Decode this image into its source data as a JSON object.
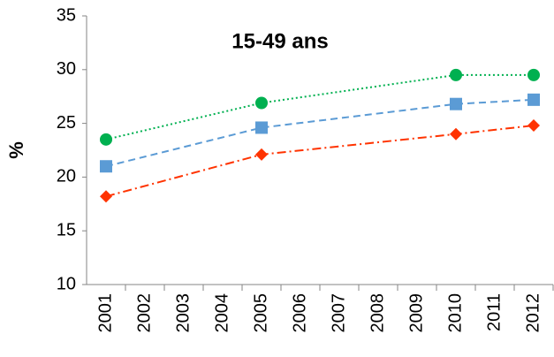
{
  "chart_data": {
    "type": "line",
    "title": "15-49 ans",
    "y_label": "%",
    "categories": [
      2001,
      2002,
      2003,
      2004,
      2005,
      2006,
      2007,
      2008,
      2009,
      2010,
      2011,
      2012
    ],
    "x": [
      2001,
      2005,
      2010,
      2012
    ],
    "series": [
      {
        "color": "#00b050",
        "marker": "circle",
        "dash": "dotted",
        "values": [
          23.5,
          26.9,
          29.5,
          29.5
        ]
      },
      {
        "color": "#5b9bd5",
        "marker": "square",
        "dash": "dashed",
        "values": [
          21,
          24.6,
          26.8,
          27.2
        ]
      },
      {
        "color": "#ff3300",
        "marker": "diamond",
        "dash": "dashdot",
        "values": [
          18.2,
          22.1,
          24.0,
          24.8
        ]
      }
    ],
    "ylim": [
      10,
      35
    ],
    "yticks": [
      10,
      15,
      20,
      25,
      30,
      35
    ],
    "grid": false
  }
}
